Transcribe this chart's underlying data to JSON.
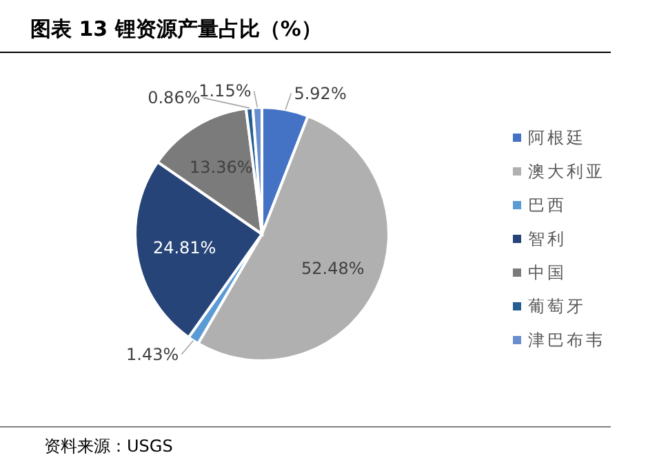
{
  "chart_data": {
    "type": "pie",
    "title": "图表 13 锂资源产量占比（%）",
    "categories": [
      "阿根廷",
      "澳大利亚",
      "巴西",
      "智利",
      "中国",
      "葡萄牙",
      "津巴布韦"
    ],
    "values": [
      5.92,
      52.48,
      1.43,
      24.81,
      13.36,
      0.86,
      1.15
    ],
    "value_labels": [
      "5.92%",
      "52.48%",
      "1.43%",
      "24.81%",
      "13.36%",
      "0.86%",
      "1.15%"
    ],
    "colors": [
      "#4472c4",
      "#b0b0b0",
      "#5b9bd5",
      "#264478",
      "#7b7b7b",
      "#255e91",
      "#698ed0"
    ],
    "legend": "right",
    "annotations": [
      "资料来源：USGS"
    ]
  }
}
